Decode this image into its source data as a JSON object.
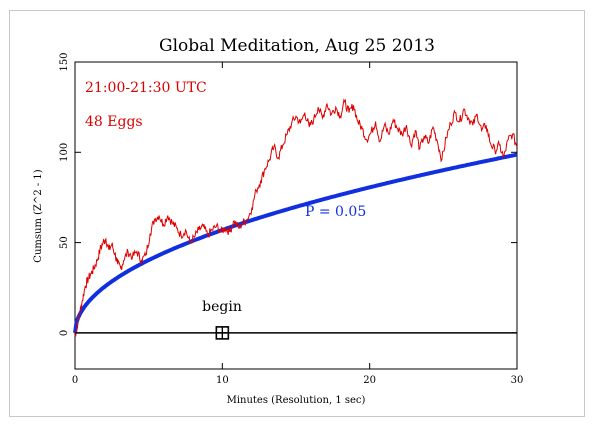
{
  "chart_data": {
    "type": "line",
    "title": "Global Meditation, Aug 25 2013",
    "xlabel": "Minutes (Resolution, 1 sec)",
    "ylabel": "Cumsum (Z^2 - 1)",
    "xlim": [
      0,
      30
    ],
    "ylim": [
      -20,
      150
    ],
    "xticks": [
      0,
      10,
      20,
      30
    ],
    "yticks": [
      0,
      50,
      100,
      150
    ],
    "grid": false,
    "annotations": {
      "time_range": "21:00-21:30 UTC",
      "eggs": "48 Eggs",
      "p_label": "P = 0.05",
      "begin_label": "begin",
      "begin_marker": {
        "x": 10,
        "y": 0
      }
    },
    "series": [
      {
        "role": "cumulative-deviation",
        "color": "#dd0000",
        "x": [
          0,
          0.1,
          0.3,
          0.5,
          0.7,
          0.9,
          1.1,
          1.3,
          1.5,
          1.7,
          1.9,
          2.1,
          2.3,
          2.5,
          2.7,
          2.9,
          3.1,
          3.3,
          3.6,
          3.9,
          4.2,
          4.5,
          4.8,
          5.1,
          5.4,
          5.7,
          6.0,
          6.3,
          6.6,
          6.9,
          7.2,
          7.5,
          7.8,
          8.1,
          8.4,
          8.7,
          9.0,
          9.3,
          9.6,
          9.9,
          10.2,
          10.5,
          10.8,
          11.1,
          11.4,
          11.7,
          12.0,
          12.3,
          12.6,
          12.9,
          13.2,
          13.5,
          13.8,
          14.1,
          14.4,
          14.7,
          15.0,
          15.3,
          15.6,
          15.9,
          16.2,
          16.5,
          16.8,
          17.1,
          17.4,
          17.7,
          18.0,
          18.3,
          18.6,
          18.9,
          19.2,
          19.5,
          19.8,
          20.1,
          20.4,
          20.7,
          21.0,
          21.3,
          21.6,
          21.9,
          22.2,
          22.5,
          22.8,
          23.1,
          23.4,
          23.7,
          24.0,
          24.3,
          24.6,
          24.9,
          25.2,
          25.5,
          25.8,
          26.1,
          26.4,
          26.7,
          27.0,
          27.3,
          27.6,
          27.9,
          28.2,
          28.5,
          28.8,
          29.1,
          29.4,
          29.7,
          30.0
        ],
        "values": [
          -2,
          2,
          10,
          18,
          26,
          30,
          33,
          36,
          40,
          46,
          50,
          52,
          46,
          49,
          44,
          38,
          36,
          40,
          45,
          42,
          45,
          40,
          43,
          55,
          63,
          65,
          60,
          65,
          61,
          58,
          54,
          57,
          50,
          53,
          57,
          59,
          54,
          57,
          59,
          56,
          58,
          56,
          62,
          58,
          61,
          63,
          69,
          79,
          84,
          91,
          96,
          103,
          97,
          104,
          110,
          116,
          120,
          116,
          122,
          114,
          118,
          125,
          119,
          127,
          121,
          125,
          120,
          128,
          122,
          126,
          117,
          113,
          107,
          111,
          117,
          106,
          115,
          110,
          118,
          113,
          110,
          115,
          104,
          112,
          102,
          109,
          105,
          114,
          106,
          96,
          108,
          116,
          122,
          117,
          124,
          119,
          115,
          121,
          112,
          115,
          105,
          101,
          104,
          97,
          107,
          110,
          103
        ]
      },
      {
        "role": "p-0.05-envelope",
        "color": "#1030e0",
        "label": "P = 0.05"
      }
    ]
  }
}
